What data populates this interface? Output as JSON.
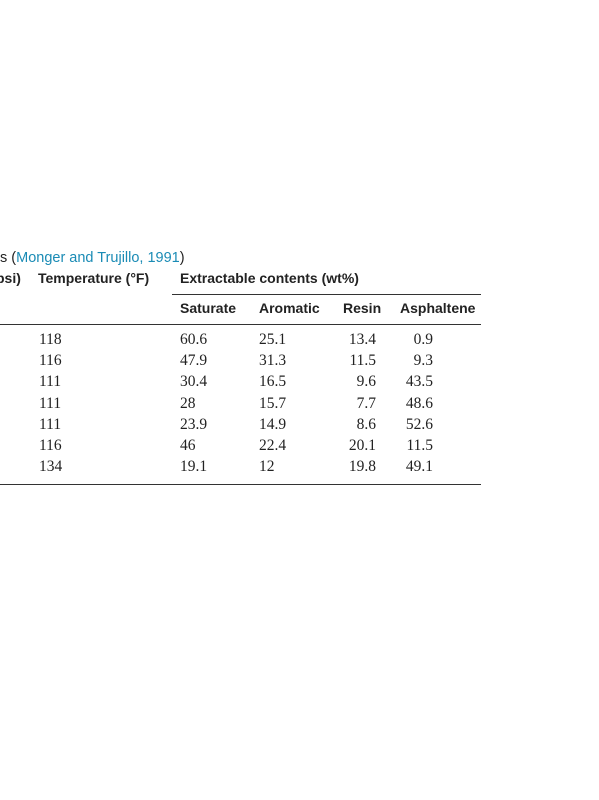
{
  "caption": {
    "prefix": "s (",
    "citation": "Monger and Trujillo, 1991",
    "suffix": ")"
  },
  "table": {
    "header": [
      "psi)",
      "Temperature (°F)",
      "Extractable contents (wt%)"
    ],
    "subheader": [
      "Saturate",
      "Aromatic",
      "Resin",
      "Asphaltene"
    ],
    "rows": [
      [
        "118",
        "60.6",
        "25.1",
        "13.4",
        "0.9"
      ],
      [
        "116",
        "47.9",
        "31.3",
        "11.5",
        "9.3"
      ],
      [
        "111",
        "30.4",
        "16.5",
        "9.6",
        "43.5"
      ],
      [
        "111",
        "28",
        "15.7",
        "7.7",
        "48.6"
      ],
      [
        "111",
        "23.9",
        "14.9",
        "8.6",
        "52.6"
      ],
      [
        "116",
        "46",
        "22.4",
        "20.1",
        "11.5"
      ],
      [
        "134",
        "19.1",
        "12",
        "19.8",
        "49.1"
      ]
    ]
  }
}
